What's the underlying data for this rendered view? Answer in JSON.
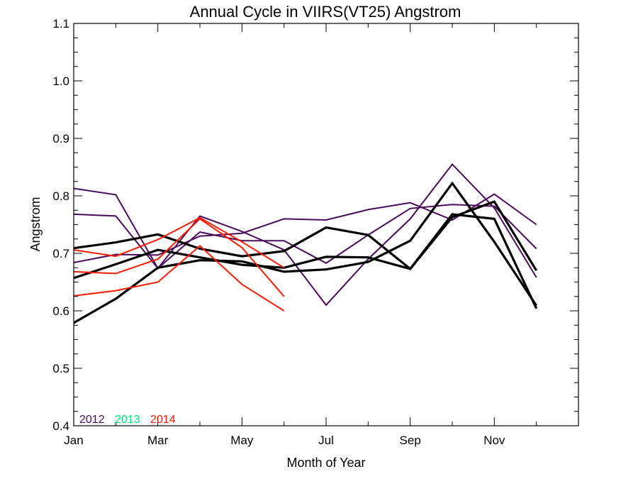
{
  "chart_data": {
    "type": "line",
    "title": "Annual Cycle in VIIRS(VT25) Angstrom",
    "xlabel": "Month of Year",
    "ylabel": "Angstrom",
    "xlim": [
      1,
      13
    ],
    "ylim": [
      0.4,
      1.1
    ],
    "x_ticks": [
      {
        "value": 1,
        "label": "Jan"
      },
      {
        "value": 3,
        "label": "Mar"
      },
      {
        "value": 5,
        "label": "May"
      },
      {
        "value": 7,
        "label": "Jul"
      },
      {
        "value": 9,
        "label": "Sep"
      },
      {
        "value": 11,
        "label": "Nov"
      }
    ],
    "y_ticks": [
      {
        "value": 0.4,
        "label": "0.4"
      },
      {
        "value": 0.5,
        "label": "0.5"
      },
      {
        "value": 0.6,
        "label": "0.6"
      },
      {
        "value": 0.7,
        "label": "0.7"
      },
      {
        "value": 0.8,
        "label": "0.8"
      },
      {
        "value": 0.9,
        "label": "0.9"
      },
      {
        "value": 1.0,
        "label": "1.0"
      },
      {
        "value": 1.1,
        "label": "1.1"
      }
    ],
    "x_minor_ticks": [
      2,
      4,
      6,
      8,
      10,
      12
    ],
    "legend": {
      "placement": "bottom-left",
      "entries": [
        {
          "label": "2012",
          "color": "#4b0a5c"
        },
        {
          "label": "2013",
          "color": "#00e676"
        },
        {
          "label": "2014",
          "color": "#ff1a00"
        }
      ]
    },
    "series": [
      {
        "color": "#4b0a5c",
        "width": "thin",
        "x": [
          1,
          2,
          3,
          4,
          5,
          6,
          7,
          8,
          9,
          10,
          11,
          12
        ],
        "values": [
          0.813,
          0.802,
          0.674,
          0.765,
          0.738,
          0.706,
          0.61,
          0.69,
          0.76,
          0.855,
          0.779,
          0.658
        ]
      },
      {
        "color": "#4b0a5c",
        "width": "thin",
        "x": [
          1,
          2,
          3,
          4,
          5,
          6,
          7,
          8,
          9,
          10,
          11,
          12
        ],
        "values": [
          0.768,
          0.765,
          0.674,
          0.737,
          0.722,
          0.722,
          0.683,
          0.732,
          0.778,
          0.785,
          0.782,
          0.708
        ]
      },
      {
        "color": "#4b0a5c",
        "width": "thin",
        "x": [
          1,
          2,
          3,
          4,
          5,
          6,
          7,
          8,
          9,
          10,
          11,
          12
        ],
        "values": [
          0.684,
          0.698,
          0.697,
          0.73,
          0.735,
          0.76,
          0.758,
          0.776,
          0.788,
          0.758,
          0.803,
          0.75
        ]
      },
      {
        "color": "#000000",
        "width": "thick",
        "x": [
          1,
          2,
          3,
          4,
          5,
          6,
          7,
          8,
          9,
          10,
          11,
          12
        ],
        "values": [
          0.709,
          0.719,
          0.733,
          0.708,
          0.695,
          0.704,
          0.745,
          0.732,
          0.673,
          0.768,
          0.76,
          0.604
        ]
      },
      {
        "color": "#000000",
        "width": "thick",
        "x": [
          1,
          2,
          3,
          4,
          5,
          6,
          7,
          8,
          9,
          10,
          11,
          12
        ],
        "values": [
          0.657,
          0.681,
          0.706,
          0.693,
          0.68,
          0.675,
          0.694,
          0.693,
          0.673,
          0.763,
          0.79,
          0.67
        ]
      },
      {
        "color": "#000000",
        "width": "thick",
        "x": [
          1,
          2,
          3,
          4,
          5,
          6,
          7,
          8,
          9,
          10,
          11,
          12
        ],
        "values": [
          0.579,
          0.621,
          0.675,
          0.688,
          0.686,
          0.668,
          0.672,
          0.685,
          0.722,
          0.822,
          0.72,
          0.609
        ]
      },
      {
        "color": "#ff1a00",
        "width": "medium",
        "x": [
          1,
          2,
          3,
          4,
          5,
          6
        ],
        "values": [
          0.706,
          0.695,
          0.724,
          0.762,
          0.72,
          0.675
        ]
      },
      {
        "color": "#ff1a00",
        "width": "medium",
        "x": [
          1,
          2,
          3,
          4,
          5,
          6
        ],
        "values": [
          0.668,
          0.665,
          0.69,
          0.76,
          0.71,
          0.625
        ]
      },
      {
        "color": "#ff1a00",
        "width": "medium",
        "x": [
          1,
          2,
          3,
          4,
          5,
          6
        ],
        "values": [
          0.626,
          0.635,
          0.65,
          0.713,
          0.646,
          0.6
        ]
      }
    ]
  }
}
